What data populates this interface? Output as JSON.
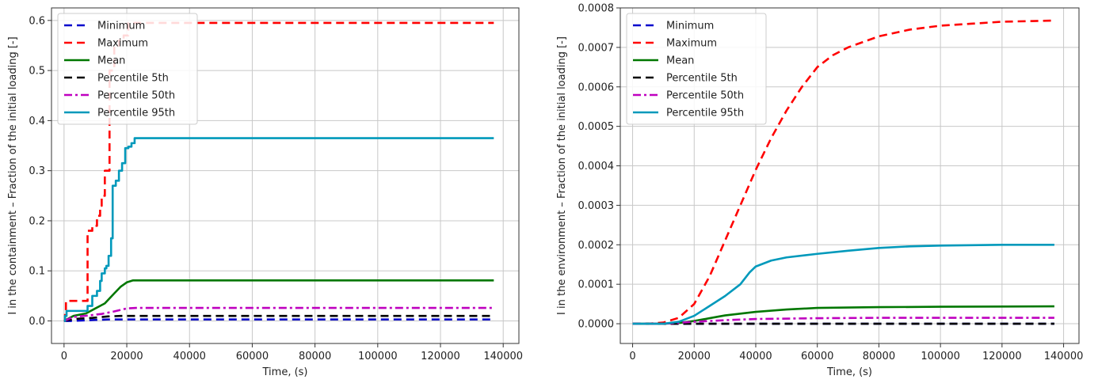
{
  "chart_data": [
    {
      "type": "line",
      "xlabel": "Time, (s)",
      "ylabel": "I in the containment – Fraction of the initial loading [-]",
      "xlim": [
        -4000,
        145000
      ],
      "ylim": [
        -0.045,
        0.625
      ],
      "xticks": [
        0,
        20000,
        40000,
        60000,
        80000,
        100000,
        120000,
        140000
      ],
      "yticks": [
        0.0,
        0.1,
        0.2,
        0.3,
        0.4,
        0.5,
        0.6
      ],
      "ytick_decimals": 1,
      "grid": true,
      "legend_position": "top-left",
      "series": [
        {
          "name": "Minimum",
          "color": "#0000cc",
          "style": "dashed",
          "step": false,
          "x": [
            0,
            2000,
            10000,
            14000,
            137000
          ],
          "y": [
            0.0,
            0.0,
            0.002,
            0.003,
            0.003
          ]
        },
        {
          "name": "Maximum",
          "color": "#ff0000",
          "style": "dashed",
          "step": true,
          "x": [
            0,
            300,
            600,
            7000,
            7500,
            9000,
            10500,
            11500,
            12000,
            13000,
            14500,
            16000,
            17500,
            19000,
            20500,
            137000
          ],
          "y": [
            0.0,
            0.02,
            0.04,
            0.04,
            0.18,
            0.19,
            0.21,
            0.23,
            0.25,
            0.3,
            0.5,
            0.55,
            0.56,
            0.57,
            0.595,
            0.595
          ]
        },
        {
          "name": "Mean",
          "color": "#007700",
          "style": "solid",
          "step": false,
          "x": [
            0,
            3000,
            7000,
            10000,
            13000,
            16000,
            18000,
            20000,
            22000,
            137000
          ],
          "y": [
            0.0,
            0.01,
            0.015,
            0.025,
            0.035,
            0.055,
            0.068,
            0.077,
            0.081,
            0.081
          ]
        },
        {
          "name": "Percentile 5th",
          "color": "#000000",
          "style": "dashed",
          "step": false,
          "x": [
            0,
            3000,
            9000,
            14000,
            18000,
            137000
          ],
          "y": [
            0.0,
            0.004,
            0.006,
            0.009,
            0.01,
            0.01
          ]
        },
        {
          "name": "Percentile 50th",
          "color": "#bf00bf",
          "style": "dashdot",
          "step": false,
          "x": [
            0,
            3000,
            8000,
            12000,
            16000,
            20000,
            23000,
            137000
          ],
          "y": [
            0.0,
            0.008,
            0.011,
            0.014,
            0.019,
            0.025,
            0.026,
            0.026
          ]
        },
        {
          "name": "Percentile 95th",
          "color": "#0099bb",
          "style": "solid",
          "step": true,
          "x": [
            0,
            300,
            800,
            6000,
            7500,
            9000,
            10500,
            11500,
            12000,
            13000,
            13500,
            14200,
            15000,
            15500,
            16500,
            17500,
            18500,
            19500,
            20500,
            21500,
            22500,
            137000
          ],
          "y": [
            0.0,
            0.01,
            0.02,
            0.02,
            0.03,
            0.05,
            0.06,
            0.08,
            0.095,
            0.105,
            0.11,
            0.13,
            0.165,
            0.27,
            0.28,
            0.3,
            0.315,
            0.345,
            0.348,
            0.355,
            0.365,
            0.365
          ]
        }
      ]
    },
    {
      "type": "line",
      "xlabel": "Time, (s)",
      "ylabel": "I in the environment – Fraction of the initial loading [-]",
      "xlim": [
        -4000,
        145000
      ],
      "ylim": [
        -5e-05,
        0.0008
      ],
      "xticks": [
        0,
        20000,
        40000,
        60000,
        80000,
        100000,
        120000,
        140000
      ],
      "yticks": [
        0.0,
        0.0001,
        0.0002,
        0.0003,
        0.0004,
        0.0005,
        0.0006,
        0.0007,
        0.0008
      ],
      "ytick_decimals": 4,
      "grid": true,
      "legend_position": "top-left",
      "series": [
        {
          "name": "Minimum",
          "color": "#0000cc",
          "style": "dashed",
          "step": false,
          "x": [
            0,
            137000
          ],
          "y": [
            0.0,
            0.0
          ]
        },
        {
          "name": "Maximum",
          "color": "#ff0000",
          "style": "dashed",
          "step": false,
          "x": [
            0,
            5000,
            10000,
            15000,
            20000,
            25000,
            30000,
            35000,
            40000,
            45000,
            50000,
            55000,
            60000,
            65000,
            70000,
            80000,
            90000,
            100000,
            110000,
            120000,
            137000
          ],
          "y": [
            0.0,
            0.0,
            3e-06,
            1.5e-05,
            5e-05,
            0.00012,
            0.00021,
            0.0003,
            0.00039,
            0.00047,
            0.00054,
            0.0006,
            0.00065,
            0.00068,
            0.0007,
            0.000728,
            0.000745,
            0.000755,
            0.00076,
            0.000765,
            0.000768
          ]
        },
        {
          "name": "Mean",
          "color": "#007700",
          "style": "solid",
          "step": false,
          "x": [
            0,
            10000,
            15000,
            20000,
            25000,
            30000,
            40000,
            50000,
            60000,
            80000,
            100000,
            137000
          ],
          "y": [
            0.0,
            0.0,
            2e-06,
            7e-06,
            1.4e-05,
            2.1e-05,
            3e-05,
            3.6e-05,
            4e-05,
            4.2e-05,
            4.3e-05,
            4.4e-05
          ]
        },
        {
          "name": "Percentile 5th",
          "color": "#000000",
          "style": "dashed",
          "step": false,
          "x": [
            0,
            137000
          ],
          "y": [
            0.0,
            0.0
          ]
        },
        {
          "name": "Percentile 50th",
          "color": "#bf00bf",
          "style": "dashdot",
          "step": false,
          "x": [
            0,
            10000,
            20000,
            30000,
            40000,
            60000,
            80000,
            137000
          ],
          "y": [
            0.0,
            0.0,
            5e-06,
            9e-06,
            1.2e-05,
            1.4e-05,
            1.5e-05,
            1.5e-05
          ]
        },
        {
          "name": "Percentile 95th",
          "color": "#0099bb",
          "style": "solid",
          "step": false,
          "x": [
            0,
            10000,
            15000,
            20000,
            25000,
            30000,
            35000,
            38000,
            40000,
            45000,
            50000,
            60000,
            70000,
            80000,
            90000,
            100000,
            120000,
            137000
          ],
          "y": [
            0.0,
            0.0,
            5e-06,
            2e-05,
            4.5e-05,
            7e-05,
            0.0001,
            0.00013,
            0.000145,
            0.00016,
            0.000168,
            0.000177,
            0.000185,
            0.000192,
            0.000196,
            0.000198,
            0.0002,
            0.0002
          ]
        }
      ]
    }
  ]
}
